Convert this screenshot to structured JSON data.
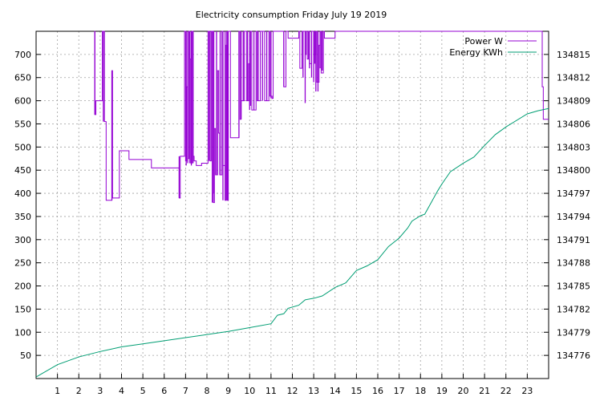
{
  "chart_data": {
    "type": "line",
    "title": "Electricity consumption Friday July 19 2019",
    "xlabel": "",
    "ylabel": "",
    "y2label": "",
    "xlim": [
      0,
      24
    ],
    "ylim": [
      0,
      750
    ],
    "y2lim": [
      134773,
      134818
    ],
    "x_ticks": [
      1,
      2,
      3,
      4,
      5,
      6,
      7,
      8,
      9,
      10,
      11,
      12,
      13,
      14,
      15,
      16,
      17,
      18,
      19,
      20,
      21,
      22,
      23
    ],
    "y_ticks": [
      50,
      100,
      150,
      200,
      250,
      300,
      350,
      400,
      450,
      500,
      550,
      600,
      650,
      700
    ],
    "y2_ticks": [
      134776,
      134779,
      134782,
      134785,
      134788,
      134791,
      134794,
      134797,
      134800,
      134803,
      134806,
      134809,
      134812,
      134815
    ],
    "grid": true,
    "legend_position": "top-right",
    "series": [
      {
        "name": "Power W",
        "axis": "left",
        "color": "#9400d3",
        "style": "steps",
        "points": [
          [
            2.73,
            750
          ],
          [
            2.75,
            570
          ],
          [
            2.8,
            600
          ],
          [
            3.1,
            750
          ],
          [
            3.2,
            555
          ],
          [
            3.28,
            385
          ],
          [
            3.55,
            665
          ],
          [
            3.58,
            390
          ],
          [
            3.9,
            492
          ],
          [
            4.35,
            473
          ],
          [
            5.4,
            455
          ],
          [
            6.7,
            390
          ],
          [
            6.75,
            480
          ],
          [
            6.95,
            750
          ],
          [
            7.0,
            470
          ],
          [
            7.05,
            630
          ],
          [
            7.1,
            475
          ],
          [
            7.15,
            750
          ],
          [
            7.2,
            690
          ],
          [
            7.25,
            465
          ],
          [
            7.3,
            750
          ],
          [
            7.35,
            480
          ],
          [
            7.4,
            470
          ],
          [
            7.5,
            460
          ],
          [
            7.75,
            465
          ],
          [
            8.05,
            750
          ],
          [
            8.15,
            470
          ],
          [
            8.2,
            750
          ],
          [
            8.3,
            380
          ],
          [
            8.35,
            540
          ],
          [
            8.4,
            440
          ],
          [
            8.5,
            665
          ],
          [
            8.55,
            530
          ],
          [
            8.6,
            440
          ],
          [
            8.7,
            750
          ],
          [
            8.75,
            460
          ],
          [
            8.85,
            385
          ],
          [
            8.9,
            720
          ],
          [
            8.95,
            385
          ],
          [
            9.0,
            750
          ],
          [
            9.1,
            520
          ],
          [
            9.5,
            750
          ],
          [
            9.55,
            560
          ],
          [
            9.6,
            600
          ],
          [
            9.75,
            750
          ],
          [
            9.85,
            600
          ],
          [
            9.95,
            680
          ],
          [
            10.0,
            590
          ],
          [
            10.05,
            750
          ],
          [
            10.1,
            580
          ],
          [
            10.3,
            750
          ],
          [
            10.35,
            600
          ],
          [
            10.5,
            750
          ],
          [
            10.7,
            600
          ],
          [
            10.9,
            750
          ],
          [
            10.95,
            610
          ],
          [
            11.05,
            605
          ],
          [
            11.1,
            750
          ],
          [
            11.6,
            630
          ],
          [
            11.7,
            750
          ],
          [
            11.8,
            735
          ],
          [
            12.3,
            750
          ],
          [
            12.35,
            670
          ],
          [
            12.45,
            750
          ],
          [
            12.6,
            700
          ],
          [
            12.65,
            750
          ],
          [
            12.7,
            690
          ],
          [
            12.75,
            750
          ],
          [
            12.8,
            680
          ],
          [
            12.9,
            750
          ],
          [
            13.0,
            700
          ],
          [
            13.1,
            750
          ],
          [
            13.15,
            640
          ],
          [
            13.25,
            720
          ],
          [
            13.3,
            750
          ],
          [
            13.35,
            660
          ],
          [
            13.45,
            750
          ],
          [
            13.5,
            735
          ],
          [
            14.0,
            750
          ],
          [
            23.6,
            750
          ],
          [
            23.7,
            630
          ],
          [
            23.75,
            560
          ],
          [
            24.0,
            560
          ]
        ],
        "vertical_spikes": [
          [
            2.75,
            570,
            750
          ],
          [
            3.15,
            555,
            750
          ],
          [
            3.55,
            385,
            665
          ],
          [
            6.7,
            390,
            480
          ],
          [
            7.03,
            460,
            750
          ],
          [
            7.1,
            465,
            750
          ],
          [
            7.2,
            465,
            750
          ],
          [
            7.27,
            460,
            750
          ],
          [
            7.35,
            465,
            750
          ],
          [
            8.1,
            470,
            750
          ],
          [
            8.25,
            380,
            750
          ],
          [
            8.32,
            400,
            750
          ],
          [
            8.45,
            440,
            750
          ],
          [
            8.62,
            440,
            750
          ],
          [
            8.75,
            385,
            750
          ],
          [
            8.85,
            385,
            750
          ],
          [
            8.93,
            385,
            750
          ],
          [
            8.98,
            385,
            750
          ],
          [
            9.5,
            520,
            750
          ],
          [
            9.6,
            560,
            750
          ],
          [
            9.7,
            600,
            750
          ],
          [
            9.9,
            600,
            750
          ],
          [
            10.0,
            580,
            750
          ],
          [
            10.2,
            580,
            750
          ],
          [
            10.4,
            600,
            750
          ],
          [
            10.6,
            600,
            750
          ],
          [
            10.8,
            600,
            750
          ],
          [
            11.0,
            605,
            750
          ],
          [
            11.6,
            630,
            750
          ],
          [
            12.5,
            650,
            750
          ],
          [
            12.6,
            595,
            750
          ],
          [
            12.8,
            670,
            750
          ],
          [
            12.9,
            650,
            750
          ],
          [
            13.0,
            640,
            750
          ],
          [
            13.05,
            680,
            750
          ],
          [
            13.1,
            620,
            750
          ],
          [
            13.2,
            620,
            750
          ],
          [
            13.3,
            670,
            750
          ],
          [
            13.4,
            665,
            750
          ]
        ]
      },
      {
        "name": "Energy KWh",
        "axis": "right",
        "color": "#009e73",
        "style": "line",
        "points": [
          [
            0,
            134773.2
          ],
          [
            1,
            134774.8
          ],
          [
            2,
            134775.8
          ],
          [
            3,
            134776.5
          ],
          [
            4,
            134777.1
          ],
          [
            5,
            134777.5
          ],
          [
            6,
            134777.9
          ],
          [
            7,
            134778.3
          ],
          [
            8,
            134778.7
          ],
          [
            9,
            134779.1
          ],
          [
            10,
            134779.6
          ],
          [
            11,
            134780.1
          ],
          [
            11.3,
            134781.2
          ],
          [
            11.6,
            134781.4
          ],
          [
            11.8,
            134782.1
          ],
          [
            12.3,
            134782.5
          ],
          [
            12.6,
            134783.2
          ],
          [
            13.0,
            134783.4
          ],
          [
            13.4,
            134783.7
          ],
          [
            14,
            134784.8
          ],
          [
            14.5,
            134785.4
          ],
          [
            15,
            134787.0
          ],
          [
            15.5,
            134787.6
          ],
          [
            16,
            134788.4
          ],
          [
            16.5,
            134790.1
          ],
          [
            17,
            134791.2
          ],
          [
            17.4,
            134792.5
          ],
          [
            17.6,
            134793.4
          ],
          [
            18.0,
            134794.1
          ],
          [
            18.2,
            134794.3
          ],
          [
            18.5,
            134795.8
          ],
          [
            18.8,
            134797.3
          ],
          [
            19.0,
            134798.2
          ],
          [
            19.4,
            134799.8
          ],
          [
            20.0,
            134800.9
          ],
          [
            20.5,
            134801.7
          ],
          [
            21.0,
            134803.2
          ],
          [
            21.5,
            134804.6
          ],
          [
            22.0,
            134805.6
          ],
          [
            23.0,
            134807.3
          ],
          [
            23.5,
            134807.7
          ],
          [
            24.0,
            134808.0
          ]
        ]
      }
    ]
  }
}
